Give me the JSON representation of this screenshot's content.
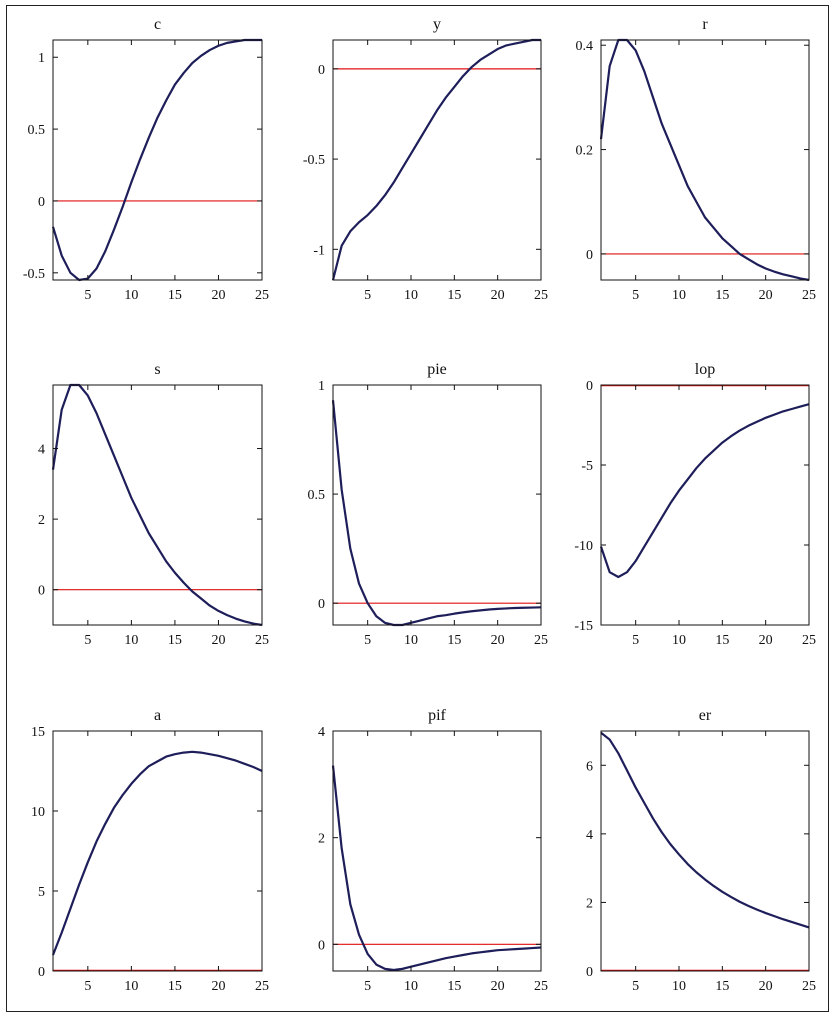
{
  "colors": {
    "series": "#1e1e5a",
    "zero_line": "#e01010",
    "axes": "#111111"
  },
  "chart_data": [
    {
      "type": "line",
      "title": "c",
      "xlim": [
        1,
        25
      ],
      "ylim": [
        -0.55,
        1.12
      ],
      "xticks": [
        5,
        10,
        15,
        20,
        25
      ],
      "yticks": [
        -0.5,
        0,
        0.5,
        1
      ],
      "ytick_labels": [
        "-0.5",
        "0",
        "0.5",
        "1"
      ],
      "grid": false,
      "zero_line": true,
      "x": [
        1,
        2,
        3,
        4,
        5,
        6,
        7,
        8,
        9,
        10,
        11,
        12,
        13,
        14,
        15,
        16,
        17,
        18,
        19,
        20,
        21,
        22,
        23,
        24,
        25
      ],
      "y": [
        -0.18,
        -0.38,
        -0.5,
        -0.55,
        -0.54,
        -0.47,
        -0.35,
        -0.2,
        -0.04,
        0.13,
        0.29,
        0.44,
        0.58,
        0.7,
        0.81,
        0.89,
        0.96,
        1.01,
        1.05,
        1.08,
        1.1,
        1.11,
        1.12,
        1.12,
        1.12
      ]
    },
    {
      "type": "line",
      "title": "y",
      "xlim": [
        1,
        25
      ],
      "ylim": [
        -1.17,
        0.16
      ],
      "xticks": [
        5,
        10,
        15,
        20,
        25
      ],
      "yticks": [
        -1,
        -0.5,
        0
      ],
      "ytick_labels": [
        "-1",
        "-0.5",
        "0"
      ],
      "grid": false,
      "zero_line": true,
      "x": [
        1,
        2,
        3,
        4,
        5,
        6,
        7,
        8,
        9,
        10,
        11,
        12,
        13,
        14,
        15,
        16,
        17,
        18,
        19,
        20,
        21,
        22,
        23,
        24,
        25
      ],
      "y": [
        -1.17,
        -0.98,
        -0.9,
        -0.85,
        -0.81,
        -0.76,
        -0.7,
        -0.63,
        -0.55,
        -0.47,
        -0.39,
        -0.31,
        -0.23,
        -0.16,
        -0.1,
        -0.04,
        0.01,
        0.05,
        0.08,
        0.11,
        0.13,
        0.14,
        0.15,
        0.16,
        0.16
      ]
    },
    {
      "type": "line",
      "title": "r",
      "xlim": [
        1,
        25
      ],
      "ylim": [
        -0.05,
        0.41
      ],
      "xticks": [
        5,
        10,
        15,
        20,
        25
      ],
      "yticks": [
        0,
        0.2,
        0.4
      ],
      "ytick_labels": [
        "0",
        "0.2",
        "0.4"
      ],
      "grid": false,
      "zero_line": true,
      "x": [
        1,
        2,
        3,
        4,
        5,
        6,
        7,
        8,
        9,
        10,
        11,
        12,
        13,
        14,
        15,
        16,
        17,
        18,
        19,
        20,
        21,
        22,
        23,
        24,
        25
      ],
      "y": [
        0.22,
        0.36,
        0.41,
        0.41,
        0.39,
        0.35,
        0.3,
        0.25,
        0.21,
        0.17,
        0.13,
        0.1,
        0.07,
        0.05,
        0.03,
        0.015,
        0.0,
        -0.01,
        -0.02,
        -0.028,
        -0.034,
        -0.039,
        -0.043,
        -0.047,
        -0.05
      ]
    },
    {
      "type": "line",
      "title": "s",
      "xlim": [
        1,
        25
      ],
      "ylim": [
        -1.0,
        5.8
      ],
      "xticks": [
        5,
        10,
        15,
        20,
        25
      ],
      "yticks": [
        0,
        2,
        4
      ],
      "ytick_labels": [
        "0",
        "2",
        "4"
      ],
      "grid": false,
      "zero_line": true,
      "x": [
        1,
        2,
        3,
        4,
        5,
        6,
        7,
        8,
        9,
        10,
        11,
        12,
        13,
        14,
        15,
        16,
        17,
        18,
        19,
        20,
        21,
        22,
        23,
        24,
        25
      ],
      "y": [
        3.4,
        5.1,
        5.8,
        5.8,
        5.5,
        5.0,
        4.4,
        3.8,
        3.2,
        2.6,
        2.1,
        1.6,
        1.2,
        0.8,
        0.48,
        0.2,
        -0.05,
        -0.25,
        -0.45,
        -0.6,
        -0.72,
        -0.82,
        -0.9,
        -0.96,
        -1.0
      ]
    },
    {
      "type": "line",
      "title": "pie",
      "xlim": [
        1,
        25
      ],
      "ylim": [
        -0.1,
        1.0
      ],
      "xticks": [
        5,
        10,
        15,
        20,
        25
      ],
      "yticks": [
        0,
        0.5,
        1
      ],
      "ytick_labels": [
        "0",
        "0.5",
        "1"
      ],
      "grid": false,
      "zero_line": true,
      "x": [
        1,
        2,
        3,
        4,
        5,
        6,
        7,
        8,
        9,
        10,
        11,
        12,
        13,
        14,
        15,
        16,
        17,
        18,
        19,
        20,
        21,
        22,
        23,
        24,
        25
      ],
      "y": [
        0.93,
        0.52,
        0.25,
        0.09,
        0.0,
        -0.06,
        -0.09,
        -0.1,
        -0.1,
        -0.09,
        -0.08,
        -0.07,
        -0.06,
        -0.055,
        -0.048,
        -0.042,
        -0.037,
        -0.033,
        -0.029,
        -0.026,
        -0.024,
        -0.022,
        -0.021,
        -0.02,
        -0.019
      ]
    },
    {
      "type": "line",
      "title": "lop",
      "xlim": [
        1,
        25
      ],
      "ylim": [
        -15,
        0
      ],
      "xticks": [
        5,
        10,
        15,
        20,
        25
      ],
      "yticks": [
        -15,
        -10,
        -5,
        0
      ],
      "ytick_labels": [
        "-15",
        "-10",
        "-5",
        "0"
      ],
      "grid": false,
      "zero_line": true,
      "x": [
        1,
        2,
        3,
        4,
        5,
        6,
        7,
        8,
        9,
        10,
        11,
        12,
        13,
        14,
        15,
        16,
        17,
        18,
        19,
        20,
        21,
        22,
        23,
        24,
        25
      ],
      "y": [
        -10.1,
        -11.7,
        -12.0,
        -11.7,
        -11.0,
        -10.1,
        -9.2,
        -8.3,
        -7.4,
        -6.6,
        -5.9,
        -5.2,
        -4.6,
        -4.1,
        -3.6,
        -3.2,
        -2.85,
        -2.55,
        -2.3,
        -2.05,
        -1.85,
        -1.65,
        -1.5,
        -1.35,
        -1.2
      ]
    },
    {
      "type": "line",
      "title": "a",
      "xlim": [
        1,
        25
      ],
      "ylim": [
        0,
        15
      ],
      "xticks": [
        5,
        10,
        15,
        20,
        25
      ],
      "yticks": [
        0,
        5,
        10,
        15
      ],
      "ytick_labels": [
        "0",
        "5",
        "10",
        "15"
      ],
      "grid": false,
      "zero_line": true,
      "x": [
        1,
        2,
        3,
        4,
        5,
        6,
        7,
        8,
        9,
        10,
        11,
        12,
        13,
        14,
        15,
        16,
        17,
        18,
        19,
        20,
        21,
        22,
        23,
        24,
        25
      ],
      "y": [
        1.0,
        2.4,
        3.9,
        5.4,
        6.8,
        8.1,
        9.2,
        10.2,
        11.0,
        11.7,
        12.3,
        12.8,
        13.1,
        13.4,
        13.55,
        13.65,
        13.7,
        13.65,
        13.55,
        13.45,
        13.3,
        13.15,
        12.95,
        12.75,
        12.5
      ]
    },
    {
      "type": "line",
      "title": "pif",
      "xlim": [
        1,
        25
      ],
      "ylim": [
        -0.5,
        4.0
      ],
      "xticks": [
        5,
        10,
        15,
        20,
        25
      ],
      "yticks": [
        0,
        2,
        4
      ],
      "ytick_labels": [
        "0",
        "2",
        "4"
      ],
      "grid": false,
      "zero_line": true,
      "x": [
        1,
        2,
        3,
        4,
        5,
        6,
        7,
        8,
        9,
        10,
        11,
        12,
        13,
        14,
        15,
        16,
        17,
        18,
        19,
        20,
        21,
        22,
        23,
        24,
        25
      ],
      "y": [
        3.35,
        1.8,
        0.75,
        0.18,
        -0.18,
        -0.38,
        -0.46,
        -0.48,
        -0.46,
        -0.42,
        -0.38,
        -0.34,
        -0.3,
        -0.26,
        -0.23,
        -0.2,
        -0.17,
        -0.15,
        -0.13,
        -0.11,
        -0.1,
        -0.09,
        -0.08,
        -0.07,
        -0.06
      ]
    },
    {
      "type": "line",
      "title": "er",
      "xlim": [
        1,
        25
      ],
      "ylim": [
        0,
        7
      ],
      "xticks": [
        5,
        10,
        15,
        20,
        25
      ],
      "yticks": [
        0,
        2,
        4,
        6
      ],
      "ytick_labels": [
        "0",
        "2",
        "4",
        "6"
      ],
      "grid": false,
      "zero_line": true,
      "x": [
        1,
        2,
        3,
        4,
        5,
        6,
        7,
        8,
        9,
        10,
        11,
        12,
        13,
        14,
        15,
        16,
        17,
        18,
        19,
        20,
        21,
        22,
        23,
        24,
        25
      ],
      "y": [
        6.95,
        6.75,
        6.35,
        5.85,
        5.35,
        4.9,
        4.45,
        4.05,
        3.7,
        3.4,
        3.12,
        2.88,
        2.67,
        2.48,
        2.31,
        2.16,
        2.02,
        1.9,
        1.79,
        1.69,
        1.6,
        1.51,
        1.43,
        1.35,
        1.27
      ]
    }
  ]
}
